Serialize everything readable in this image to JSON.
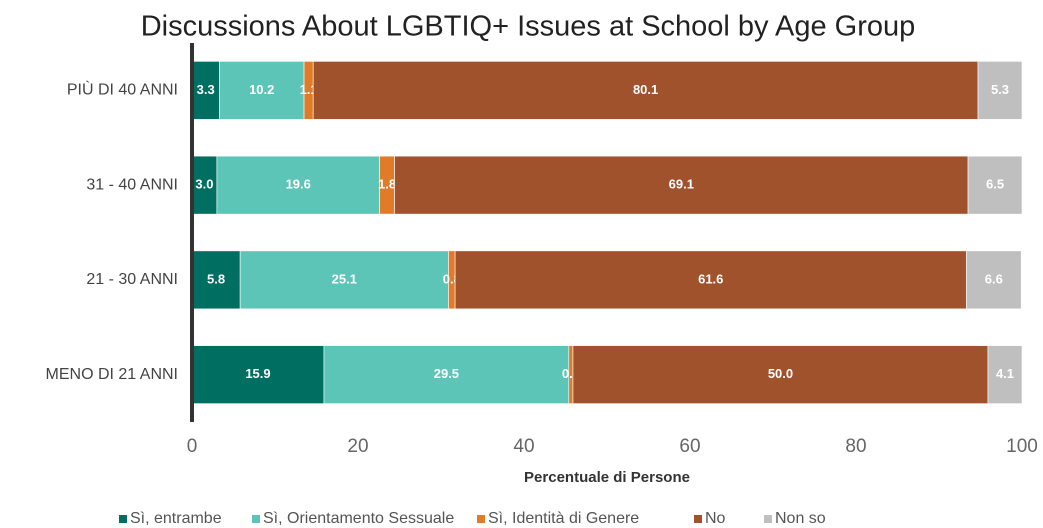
{
  "chart_data": {
    "type": "stacked_bar_horizontal",
    "title": "Discussions About LGBTIQ+ Issues at School by Age Group",
    "x_label": "Percentuale di Persone",
    "categories": [
      "PIÙ DI 40 ANNI",
      "31 - 40 ANNI",
      "21 - 30 ANNI",
      "MENO DI 21 ANNI"
    ],
    "series": [
      {
        "name": "Sì, entrambe",
        "color": "#006e60",
        "values": [
          3.3,
          3.0,
          5.8,
          15.9
        ],
        "value_labels": [
          "3.3",
          "3.0",
          "5.8",
          "15.9"
        ]
      },
      {
        "name": "Sì, Orientamento Sessuale",
        "color": "#5dc5b8",
        "values": [
          10.2,
          19.6,
          25.1,
          29.5
        ]
      },
      {
        "name": "Sì, Identità di Genere",
        "color": "#e07b2a",
        "values": [
          1.1,
          1.8,
          0.8,
          0.5
        ]
      },
      {
        "name": "No",
        "color": "#a0522d",
        "values": [
          80.1,
          69.1,
          61.6,
          50.0
        ],
        "value_labels": [
          "80.1",
          "69.1",
          "61.6",
          "50.0"
        ]
      },
      {
        "name": "Non so",
        "color": "#bfbfbf",
        "values": [
          5.3,
          6.5,
          6.6,
          4.1
        ]
      }
    ],
    "xlim": [
      0,
      100
    ],
    "xticks": [
      0,
      20,
      40,
      60,
      80,
      100
    ]
  }
}
